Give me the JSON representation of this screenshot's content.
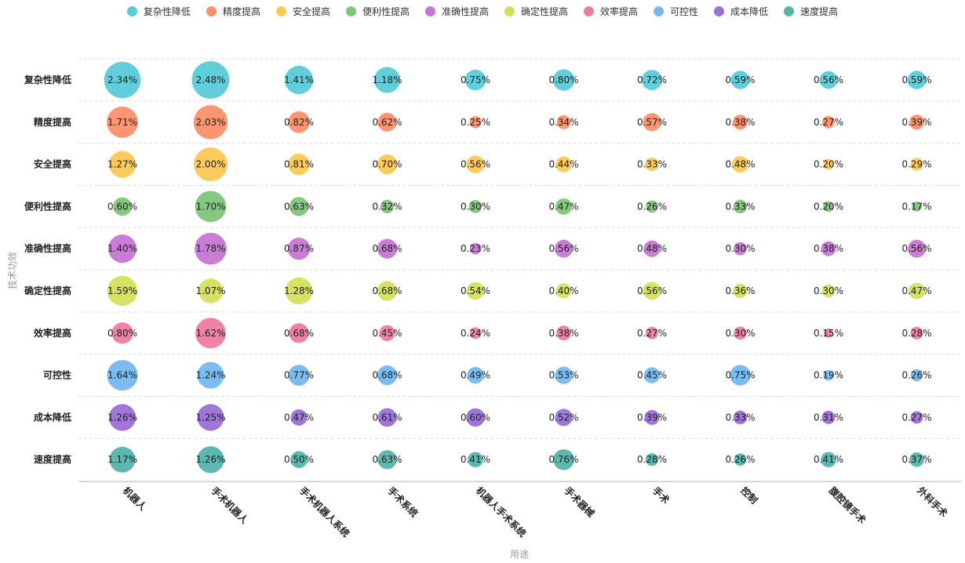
{
  "chart_data": {
    "type": "scatter",
    "subtype": "bubble-matrix",
    "xlabel": "用途",
    "ylabel": "技术功效",
    "categories_x": [
      "机器人",
      "手术机器人",
      "手术机器人系统",
      "手术系统",
      "机器人手术系统",
      "手术器械",
      "手术",
      "控制",
      "腹腔镜手术",
      "外科手术"
    ],
    "categories_y": [
      "复杂性降低",
      "精度提高",
      "安全提高",
      "便利性提高",
      "准确性提高",
      "确定性提高",
      "效率提高",
      "可控性",
      "成本降低",
      "速度提高"
    ],
    "legend": [
      "复杂性降低",
      "精度提高",
      "安全提高",
      "便利性提高",
      "准确性提高",
      "确定性提高",
      "效率提高",
      "可控性",
      "成本降低",
      "速度提高"
    ],
    "legend_position": "top-center",
    "grid": "horizontal-dashed",
    "colors": [
      "#5bcbd9",
      "#fb8f6a",
      "#fcc855",
      "#7fc57a",
      "#c775d5",
      "#d5df5a",
      "#f07ba1",
      "#74b9ef",
      "#9b6fd6",
      "#56b4ab"
    ],
    "values": [
      [
        2.34,
        2.48,
        1.41,
        1.18,
        0.75,
        0.8,
        0.72,
        0.59,
        0.56,
        0.59
      ],
      [
        1.71,
        2.03,
        0.82,
        0.62,
        0.25,
        0.34,
        0.57,
        0.38,
        0.27,
        0.39
      ],
      [
        1.27,
        2.0,
        0.81,
        0.7,
        0.56,
        0.44,
        0.33,
        0.48,
        0.2,
        0.29
      ],
      [
        0.6,
        1.7,
        0.63,
        0.32,
        0.3,
        0.47,
        0.26,
        0.33,
        0.2,
        0.17
      ],
      [
        1.4,
        1.78,
        0.87,
        0.68,
        0.23,
        0.56,
        0.48,
        0.3,
        0.38,
        0.56
      ],
      [
        1.59,
        1.07,
        1.28,
        0.68,
        0.54,
        0.4,
        0.56,
        0.36,
        0.3,
        0.47
      ],
      [
        0.8,
        1.62,
        0.68,
        0.45,
        0.24,
        0.38,
        0.27,
        0.3,
        0.15,
        0.28
      ],
      [
        1.64,
        1.24,
        0.77,
        0.68,
        0.49,
        0.53,
        0.45,
        0.75,
        0.19,
        0.26
      ],
      [
        1.26,
        1.25,
        0.47,
        0.61,
        0.6,
        0.52,
        0.39,
        0.33,
        0.31,
        0.27
      ],
      [
        1.17,
        1.26,
        0.5,
        0.63,
        0.41,
        0.76,
        0.28,
        0.26,
        0.41,
        0.37
      ]
    ],
    "value_suffix": "%"
  }
}
